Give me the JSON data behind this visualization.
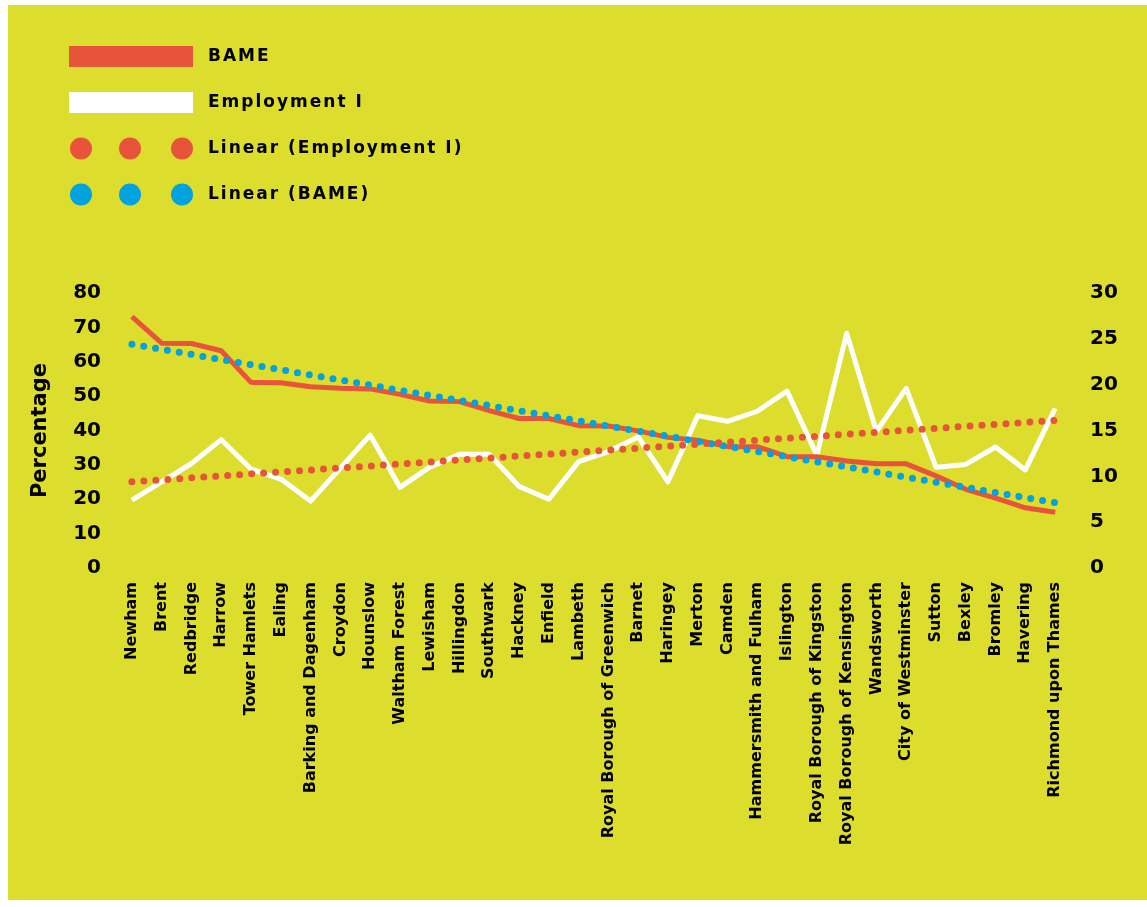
{
  "chart_data": {
    "type": "line",
    "ylabel": "Percentage",
    "categories": [
      "Newham",
      "Brent",
      "Redbridge",
      "Harrow",
      "Tower Hamlets",
      "Ealing",
      "Barking and Dagenham",
      "Croydon",
      "Hounslow",
      "Waltham Forest",
      "Lewisham",
      "Hillingdon",
      "Southwark",
      "Hackney",
      "Enfield",
      "Lambeth",
      "Royal Borough of Greenwich",
      "Barnet",
      "Haringey",
      "Merton",
      "Camden",
      "Hammersmith and Fulham",
      "Islington",
      "Royal Borough of Kingston",
      "Royal Borough of Kensington",
      "Wandsworth",
      "City of Westminster",
      "Sutton",
      "Bexley",
      "Bromley",
      "Havering",
      "Richmond upon Thames"
    ],
    "series": [
      {
        "name": "BAME",
        "color": "#e8533b",
        "values": [
          73.1,
          65.4,
          65.3,
          63.2,
          54.0,
          53.9,
          52.7,
          52.3,
          52.1,
          50.5,
          48.6,
          48.4,
          45.8,
          43.5,
          43.5,
          41.4,
          41.3,
          39.9,
          38.0,
          37.2,
          35.3,
          35.3,
          32.4,
          32.4,
          31.1,
          30.3,
          30.3,
          26.8,
          22.9,
          20.3,
          17.5,
          16.2
        ]
      },
      {
        "name": "Employment I",
        "color": "#ffffff",
        "axis": "y2",
        "values": [
          7.4,
          9.4,
          11.4,
          14.0,
          10.8,
          9.7,
          7.3,
          10.9,
          14.5,
          8.8,
          11.0,
          12.4,
          12.4,
          8.9,
          7.5,
          11.6,
          12.7,
          14.3,
          9.4,
          16.6,
          16.0,
          17.1,
          19.3,
          12.3,
          25.6,
          14.9,
          19.6,
          11.0,
          11.3,
          13.2,
          10.7,
          17.4
        ]
      },
      {
        "name": "Linear (Employment I)",
        "type": "line",
        "color": "#e8533b",
        "axis": "y2",
        "line_style": "dotted",
        "x": [
          "Newham",
          "Richmond upon Thames"
        ],
        "values": [
          9.4,
          16.1
        ]
      },
      {
        "name": "Linear (BAME)",
        "type": "line",
        "color": "#00a3de",
        "line_style": "dotted",
        "x": [
          "Newham",
          "Richmond upon Thames"
        ],
        "values": [
          65.1,
          19.0
        ]
      }
    ],
    "ylim": [
      0,
      80
    ],
    "yticks": [
      0,
      10,
      20,
      30,
      40,
      50,
      60,
      70,
      80
    ],
    "y2lim": [
      0,
      30
    ],
    "y2ticks": [
      0,
      5,
      10,
      15,
      20,
      25,
      30
    ],
    "grid": false,
    "legend": "top left",
    "marker": "none",
    "line_style": "solid"
  }
}
